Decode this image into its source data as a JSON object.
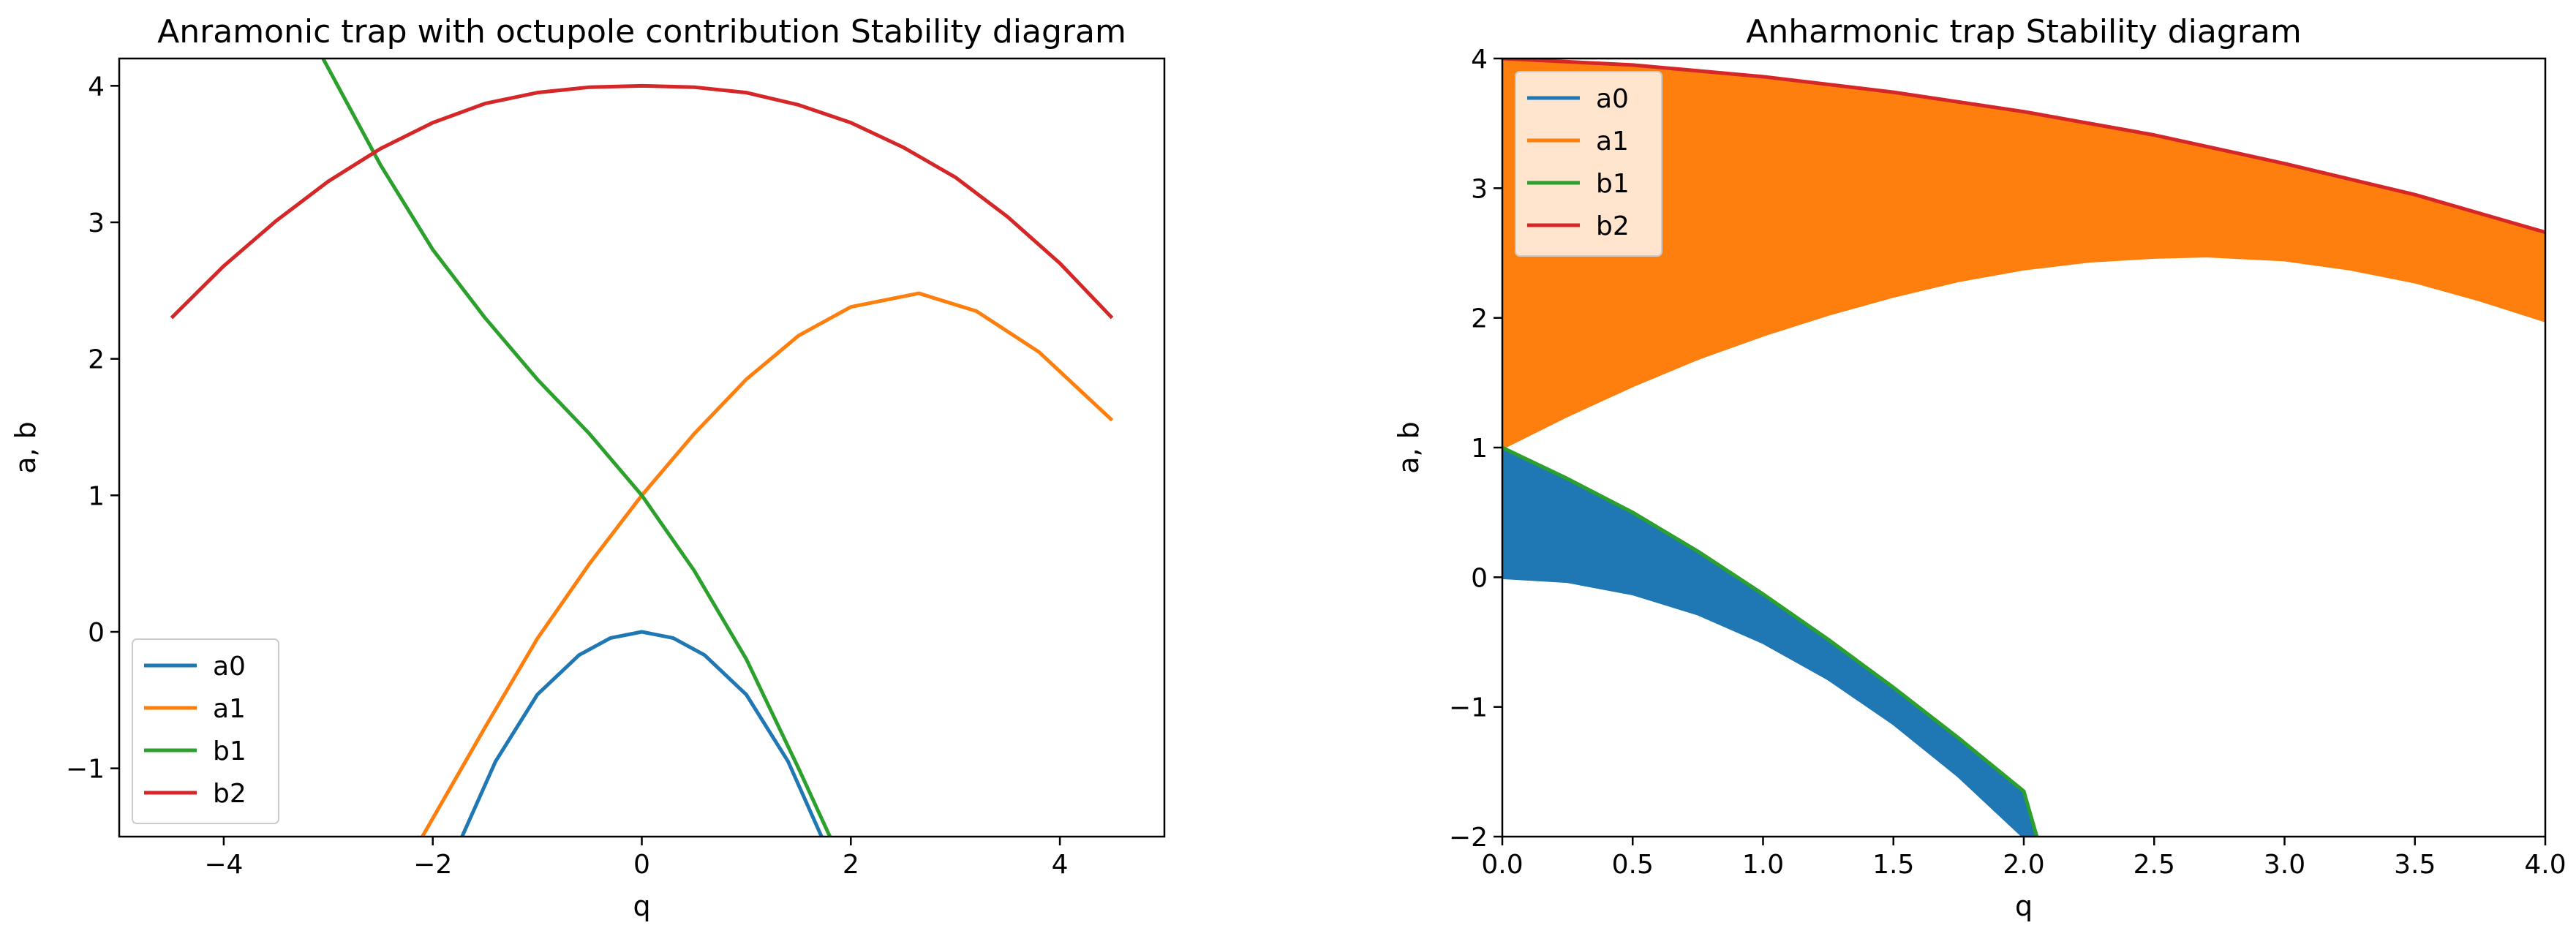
{
  "chart_data": [
    {
      "type": "line",
      "title": "Anramonic trap with octupole contribution Stability diagram",
      "xlabel": "q",
      "ylabel": "a, b",
      "xlim": [
        -5,
        5
      ],
      "ylim": [
        -1.5,
        4.2
      ],
      "xticks": [
        -4,
        -2,
        0,
        2,
        4
      ],
      "yticks": [
        -1,
        0,
        1,
        2,
        3,
        4
      ],
      "legend": "lower-left",
      "grid": false,
      "series": [
        {
          "name": "a0",
          "color": "#1f77b4",
          "x": [
            -1.72,
            -1.4,
            -1.0,
            -0.6,
            -0.3,
            0,
            0.3,
            0.6,
            1.0,
            1.4,
            1.72
          ],
          "values": [
            -1.5,
            -0.95,
            -0.46,
            -0.17,
            -0.045,
            0,
            -0.045,
            -0.17,
            -0.46,
            -0.95,
            -1.5
          ]
        },
        {
          "name": "a1",
          "color": "#ff7f0e",
          "x": [
            -2.1,
            -1.5,
            -1.0,
            -0.5,
            0,
            0.5,
            1.0,
            1.5,
            2.0,
            2.65,
            3.2,
            3.8,
            4.5
          ],
          "values": [
            -1.5,
            -0.7,
            -0.05,
            0.5,
            1.0,
            1.45,
            1.85,
            2.17,
            2.38,
            2.48,
            2.35,
            2.05,
            1.55
          ]
        },
        {
          "name": "b1",
          "color": "#2ca02c",
          "x": [
            -3.05,
            -2.5,
            -2.0,
            -1.5,
            -1.0,
            -0.5,
            0,
            0.5,
            1.0,
            1.5,
            1.8
          ],
          "values": [
            4.2,
            3.42,
            2.8,
            2.3,
            1.85,
            1.45,
            1.0,
            0.45,
            -0.2,
            -1.0,
            -1.5
          ]
        },
        {
          "name": "b2",
          "color": "#d62728",
          "x": [
            -4.5,
            -4.0,
            -3.5,
            -3.0,
            -2.5,
            -2.0,
            -1.5,
            -1.0,
            -0.5,
            0,
            0.5,
            1.0,
            1.5,
            2.0,
            2.5,
            3.0,
            3.5,
            4.0,
            4.5
          ],
          "values": [
            2.3,
            2.68,
            3.01,
            3.3,
            3.54,
            3.73,
            3.87,
            3.95,
            3.99,
            4.0,
            3.99,
            3.95,
            3.86,
            3.73,
            3.55,
            3.33,
            3.04,
            2.7,
            2.3
          ]
        }
      ]
    },
    {
      "type": "area",
      "title": "Anharmonic trap Stability diagram",
      "xlabel": "q",
      "ylabel": "a, b",
      "xlim": [
        0,
        4
      ],
      "ylim": [
        -2,
        4
      ],
      "xticks": [
        0.0,
        0.5,
        1.0,
        1.5,
        2.0,
        2.5,
        3.0,
        3.5,
        4.0
      ],
      "yticks": [
        -2,
        -1,
        0,
        1,
        2,
        3,
        4
      ],
      "legend": "upper-left",
      "grid": false,
      "fills": [
        {
          "between": [
            "a0",
            "b1"
          ],
          "color": "#1f77b4"
        },
        {
          "between": [
            "a1",
            "b2"
          ],
          "color": "#ff7f0e"
        }
      ],
      "series": [
        {
          "name": "a0",
          "color": "#1f77b4",
          "x": [
            0,
            0.25,
            0.5,
            0.75,
            1.0,
            1.25,
            1.5,
            1.75,
            2.0,
            2.05
          ],
          "values": [
            0,
            -0.03,
            -0.125,
            -0.28,
            -0.5,
            -0.78,
            -1.125,
            -1.53,
            -2.0,
            -2.1
          ]
        },
        {
          "name": "a1",
          "color": "#ff7f0e",
          "x": [
            0,
            0.25,
            0.5,
            0.75,
            1.0,
            1.25,
            1.5,
            1.75,
            2.0,
            2.25,
            2.5,
            2.7,
            3.0,
            3.25,
            3.5,
            3.75,
            4.0
          ],
          "values": [
            1.0,
            1.25,
            1.48,
            1.69,
            1.87,
            2.03,
            2.17,
            2.29,
            2.38,
            2.44,
            2.47,
            2.48,
            2.45,
            2.38,
            2.28,
            2.14,
            1.98
          ]
        },
        {
          "name": "b1",
          "color": "#2ca02c",
          "x": [
            0,
            0.25,
            0.5,
            0.75,
            1.0,
            1.25,
            1.5,
            1.75,
            2.0,
            2.05
          ],
          "values": [
            1.0,
            0.76,
            0.5,
            0.2,
            -0.13,
            -0.48,
            -0.85,
            -1.24,
            -1.65,
            -2.0
          ]
        },
        {
          "name": "b2",
          "color": "#d62728",
          "x": [
            0,
            0.5,
            1.0,
            1.5,
            2.0,
            2.5,
            3.0,
            3.5,
            4.0
          ],
          "values": [
            4.0,
            3.95,
            3.86,
            3.74,
            3.59,
            3.41,
            3.19,
            2.95,
            2.66
          ]
        }
      ]
    }
  ]
}
